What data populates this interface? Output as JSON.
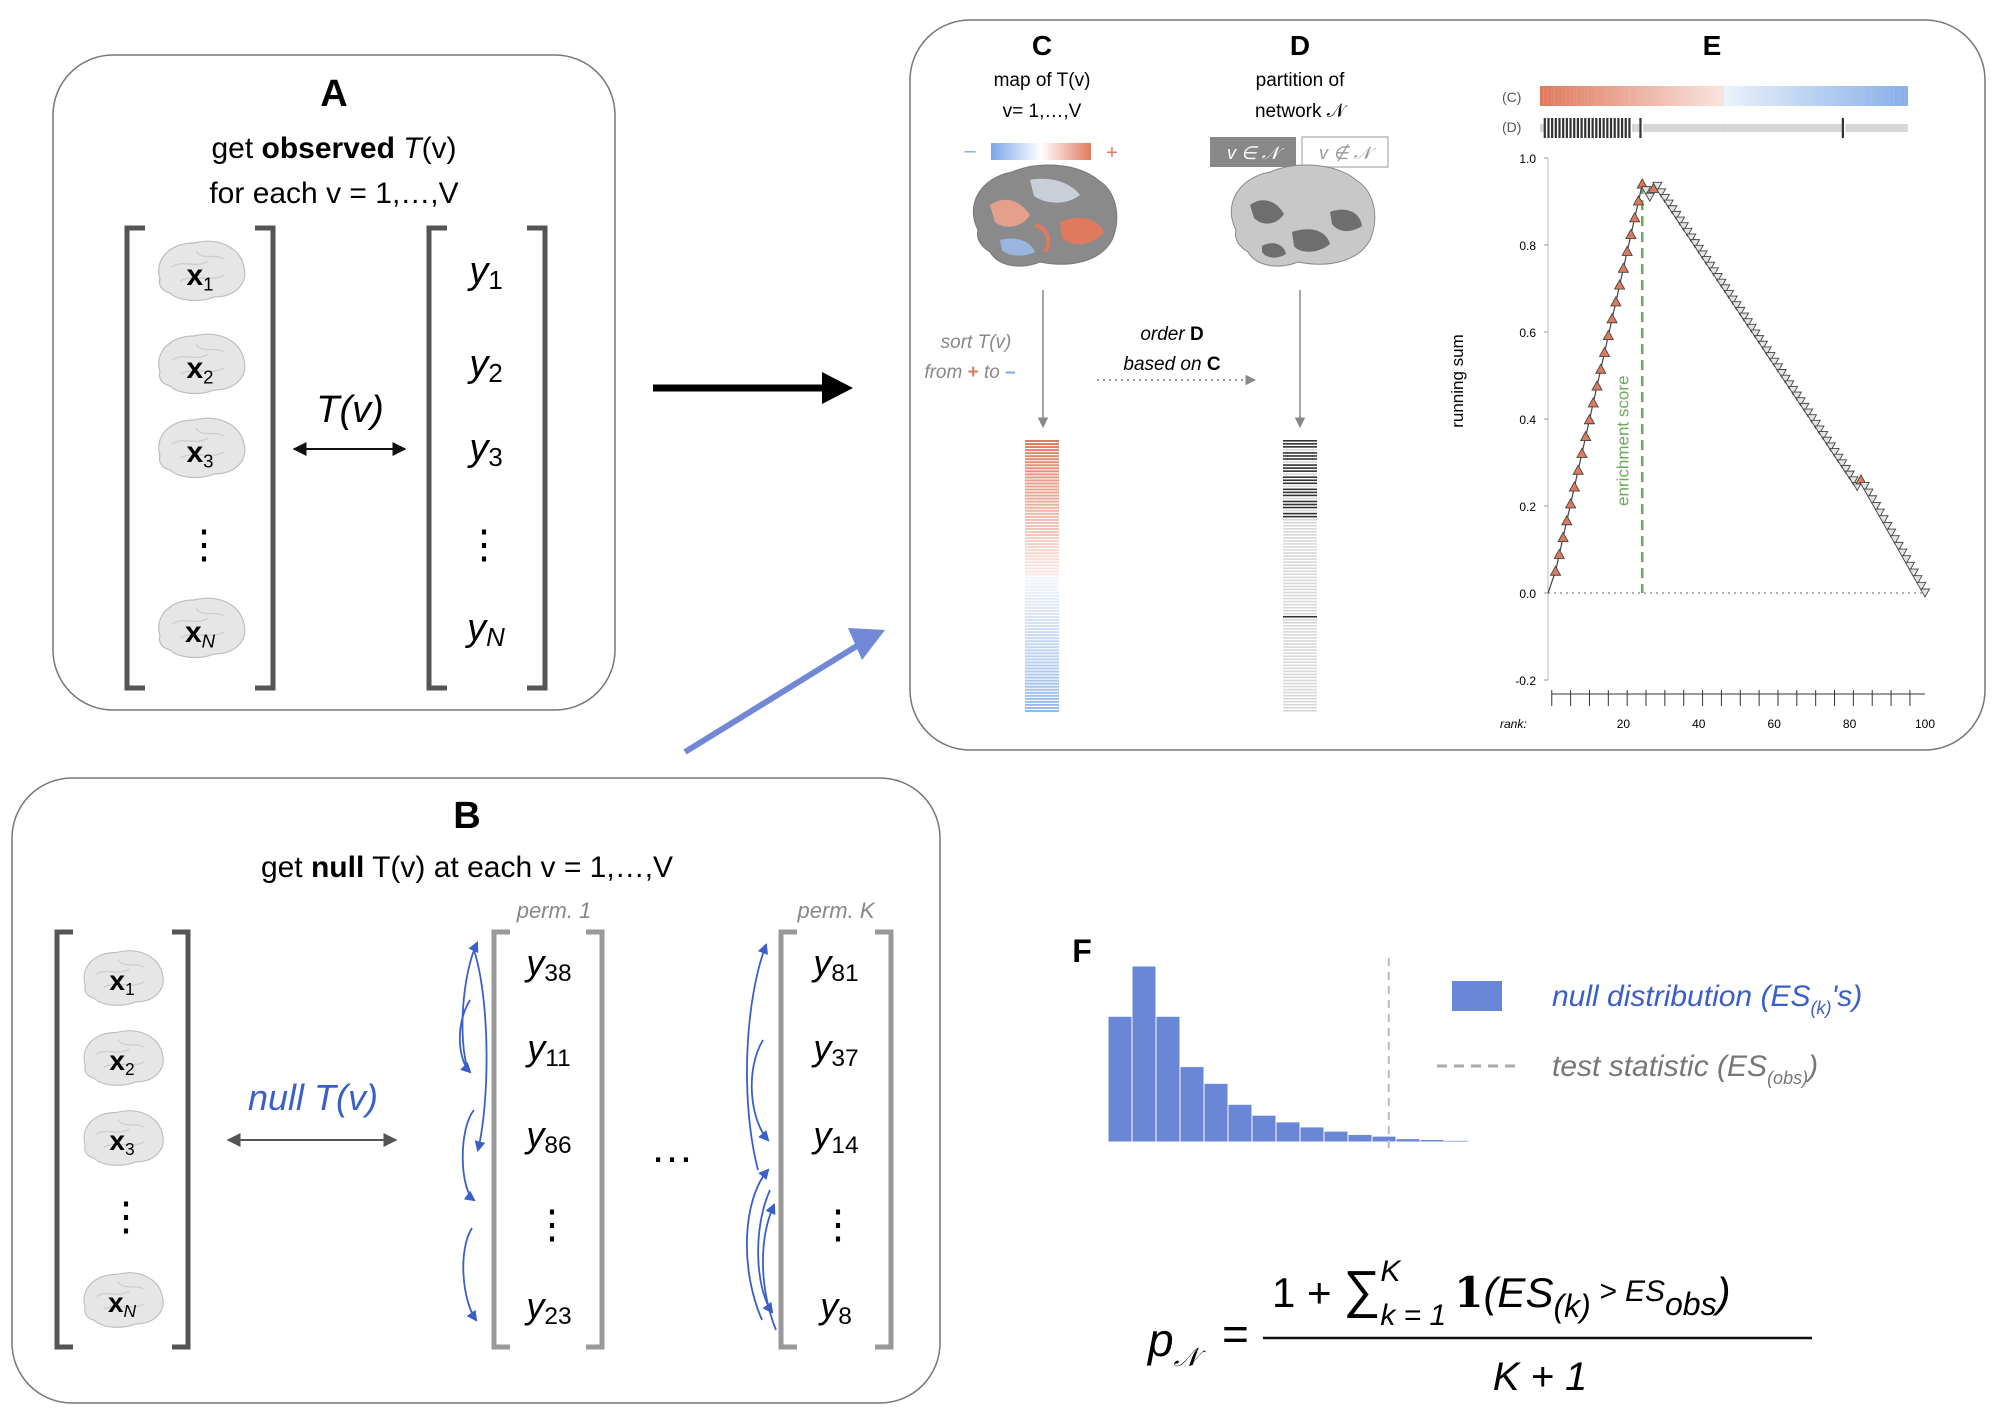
{
  "panelA": {
    "letter": "A",
    "line1_prefix": "get ",
    "line1_bold": "observed",
    "line1_T": "T",
    "line1_v": "(v)",
    "line2": "for each v = 1,…,V",
    "x_label": "x",
    "x_subs": [
      "1",
      "2",
      "3",
      "N"
    ],
    "y_label": "y",
    "y_subs": [
      "1",
      "2",
      "3",
      "N"
    ],
    "dots": "⋮",
    "arrow_label": "T(v)"
  },
  "panelB": {
    "letter": "B",
    "title_prefix": "get ",
    "title_bold": "null",
    "title_rest": " T(v) at each v = 1,…,V",
    "x_subs": [
      "1",
      "2",
      "3",
      "N"
    ],
    "arrow_label": "null T(v)",
    "perm1_label": "perm. 1",
    "perm1_subs": [
      "38",
      "11",
      "86",
      "23"
    ],
    "permK_label": "perm. K",
    "permK_subs": [
      "81",
      "37",
      "14",
      "8"
    ],
    "ellipsis": "…",
    "dots": "⋮"
  },
  "panelC": {
    "letter": "C",
    "line1": "map of T(v)",
    "line2": "v= 1,…,V",
    "minus": "–",
    "plus": "+",
    "sort_line1": "sort T(v)",
    "sort_from": "from ",
    "sort_plus": "+",
    "sort_to": " to ",
    "sort_minus": "–"
  },
  "panelD": {
    "letter": "D",
    "line1": "partition of",
    "line2": "network 𝒩",
    "in_label": "v  ∈ 𝒩",
    "notin_label": "v  ∉ 𝒩",
    "order_line1_prefix": "order ",
    "order_line1_bold": "D",
    "order_line2_prefix": "based on ",
    "order_line2_bold": "C"
  },
  "panelE": {
    "letter": "E",
    "row_c": "(C)",
    "row_d": "(D)",
    "annotation": "enrichment score"
  },
  "chart_data": [
    {
      "type": "line",
      "ylabel": "running sum",
      "xlabel": "rank:",
      "xlim": [
        0,
        100
      ],
      "ylim": [
        -0.2,
        1.0
      ],
      "x_ticks": [
        20,
        40,
        60,
        80,
        100
      ],
      "y_ticks": [
        "1.0",
        "0.8",
        "0.6",
        "0.4",
        "0.2",
        "0.0",
        "-0.2"
      ],
      "baseline": 0.0,
      "enrichment_rank": 25,
      "enrichment_value": 0.94,
      "hits": [
        2,
        3,
        4,
        5,
        6,
        7,
        8,
        9,
        10,
        11,
        12,
        13,
        14,
        15,
        16,
        17,
        18,
        19,
        20,
        21,
        22,
        23,
        24,
        25,
        28,
        83
      ],
      "series": [
        {
          "x": [
            0,
            2,
            25,
            26,
            27,
            28,
            29,
            30,
            82,
            83,
            84,
            100
          ],
          "y": [
            0.0,
            0.05,
            0.94,
            0.925,
            0.91,
            0.93,
            0.935,
            0.92,
            0.245,
            0.26,
            0.245,
            0.0
          ]
        }
      ]
    },
    {
      "type": "bar",
      "values": [
        150,
        210,
        150,
        90,
        70,
        45,
        32,
        24,
        18,
        13,
        9,
        7,
        4,
        3,
        2,
        1,
        1,
        1,
        1,
        1
      ],
      "observed_bin": 11.7,
      "legend": [
        {
          "label": "null distribution (ES",
          "sub": "(k)",
          "tail": "'s)",
          "color": "#6a86d6"
        },
        {
          "label": "test statistic (ES",
          "sub": "(obs)",
          "tail": ")",
          "color": "#9a9a9a"
        }
      ]
    }
  ],
  "panelF": {
    "letter": "F",
    "p_symbol": "p",
    "p_sub": "𝒩",
    "equals": "=",
    "num_prefix": "1 + ",
    "sigma": "∑",
    "sum_sup": "K",
    "sum_sub": "k = 1",
    "indicator": "1",
    "num_mid1": "(ES",
    "num_sub1": "(k)",
    "num_gt": " > ES",
    "num_sub2": "obs",
    "num_close": ")",
    "denominator": "K + 1"
  },
  "colors": {
    "salmon": "#e07a5f",
    "blue": "#7aa6e6",
    "arrow_blue": "#7088d6",
    "null_blue": "#3a5fc8",
    "green": "#6aaa5a"
  }
}
